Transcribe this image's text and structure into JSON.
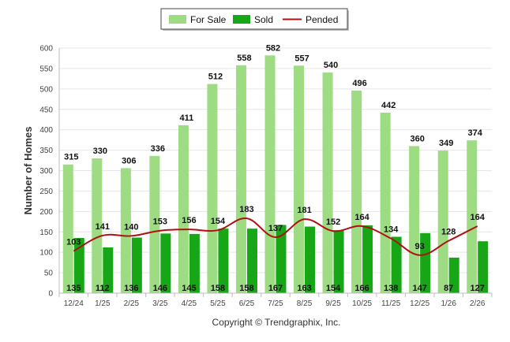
{
  "chart_data": {
    "type": "bar",
    "title": "",
    "xlabel": "",
    "ylabel": "Number of Homes",
    "ylim": [
      0,
      600
    ],
    "yticks": [
      0,
      50,
      100,
      150,
      200,
      250,
      300,
      350,
      400,
      450,
      500,
      550,
      600
    ],
    "grid": true,
    "legend_position": "top-center",
    "categories": [
      "12/24",
      "1/25",
      "2/25",
      "3/25",
      "4/25",
      "5/25",
      "6/25",
      "7/25",
      "8/25",
      "9/25",
      "10/25",
      "11/25",
      "12/25",
      "1/26",
      "2/26"
    ],
    "series": [
      {
        "name": "For Sale",
        "kind": "bar",
        "color": "#9ddc82",
        "values": [
          315,
          330,
          306,
          336,
          411,
          512,
          558,
          582,
          557,
          540,
          496,
          442,
          360,
          349,
          374
        ]
      },
      {
        "name": "Sold",
        "kind": "bar",
        "color": "#16a616",
        "values": [
          135,
          112,
          136,
          146,
          145,
          158,
          158,
          167,
          163,
          154,
          166,
          138,
          147,
          87,
          127
        ]
      },
      {
        "name": "Pended",
        "kind": "line",
        "color": "#b01010",
        "values": [
          103,
          141,
          140,
          153,
          156,
          154,
          183,
          137,
          181,
          152,
          164,
          134,
          93,
          128,
          164
        ]
      }
    ]
  },
  "footer": {
    "copyright": "Copyright © Trendgraphix, Inc."
  }
}
